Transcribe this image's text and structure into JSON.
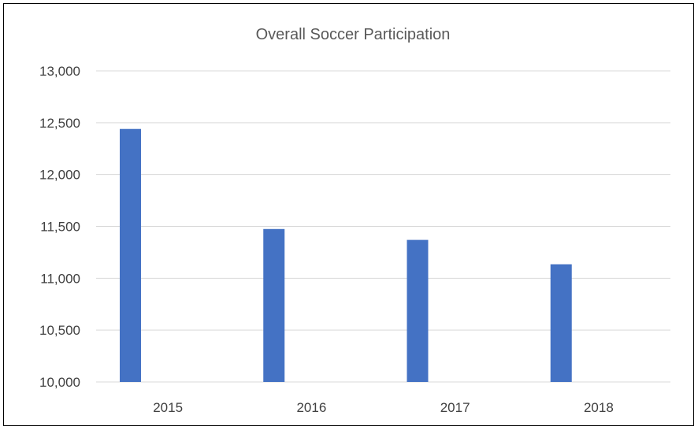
{
  "chart_data": {
    "type": "bar",
    "title": "Overall Soccer Participation",
    "xlabel": "",
    "ylabel": "",
    "categories": [
      "2015",
      "2016",
      "2017",
      "2018"
    ],
    "values": [
      12440,
      11475,
      11370,
      11135
    ],
    "ylim": [
      10000,
      13000
    ],
    "yticks": [
      10000,
      10500,
      11000,
      11500,
      12000,
      12500,
      13000
    ],
    "ytick_labels": [
      "10,000",
      "10,500",
      "11,000",
      "11,500",
      "12,000",
      "12,500",
      "13,000"
    ],
    "grid": true,
    "legend": "none",
    "bar_color": "#4472c4"
  }
}
